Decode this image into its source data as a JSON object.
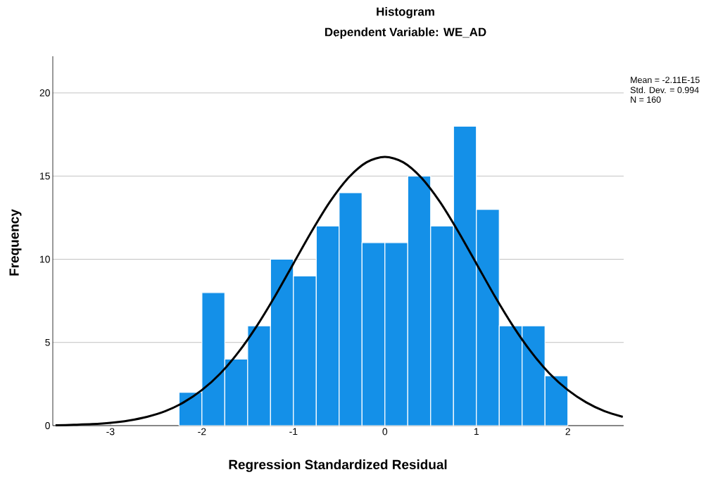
{
  "chart_data": {
    "type": "histogram",
    "title": "Histogram",
    "subtitle": "Dependent Variable: WE_AD",
    "xlabel": "Regression Standardized Residual",
    "ylabel": "Frequency",
    "bins": [
      -2.25,
      -2.0,
      -1.75,
      -1.5,
      -1.25,
      -1.0,
      -0.75,
      -0.5,
      -0.25,
      0.0,
      0.25,
      0.5,
      0.75,
      1.0,
      1.25,
      1.5,
      1.75,
      2.0
    ],
    "values": [
      2,
      8,
      4,
      6,
      10,
      9,
      12,
      14,
      11,
      11,
      15,
      12,
      18,
      13,
      6,
      6,
      3
    ],
    "color": "#1490e8",
    "series": [
      {
        "type": "line",
        "color": "#000000",
        "x": [
          -3.6,
          -3.4,
          -3.2,
          -3.0,
          -2.8,
          -2.6,
          -2.4,
          -2.2,
          -2.0,
          -1.8,
          -1.6,
          -1.4,
          -1.2,
          -1.0,
          -0.8,
          -0.6,
          -0.4,
          -0.2,
          0.0,
          0.2,
          0.4,
          0.6,
          0.8,
          1.0,
          1.2,
          1.4,
          1.6,
          1.8,
          2.0,
          2.2,
          2.4,
          2.6
        ],
        "values": [
          0.02,
          0.05,
          0.09,
          0.17,
          0.31,
          0.53,
          0.87,
          1.4,
          2.14,
          3.13,
          4.42,
          5.99,
          7.79,
          9.74,
          11.68,
          13.46,
          14.89,
          15.83,
          16.15,
          15.83,
          14.89,
          13.46,
          11.68,
          9.74,
          7.79,
          5.99,
          4.42,
          3.13,
          2.14,
          1.4,
          0.87,
          0.53
        ]
      }
    ],
    "xlim": [
      -3.63,
      2.61
    ],
    "ylim": [
      0,
      22.2
    ],
    "xticks": [
      -3,
      -2,
      -1,
      0,
      1,
      2
    ],
    "yticks": [
      0,
      5,
      10,
      15,
      20
    ],
    "grid": "y",
    "annotations": [
      "Mean = -2.11E-15",
      "Std. Dev. = 0.994",
      "N = 160"
    ]
  }
}
